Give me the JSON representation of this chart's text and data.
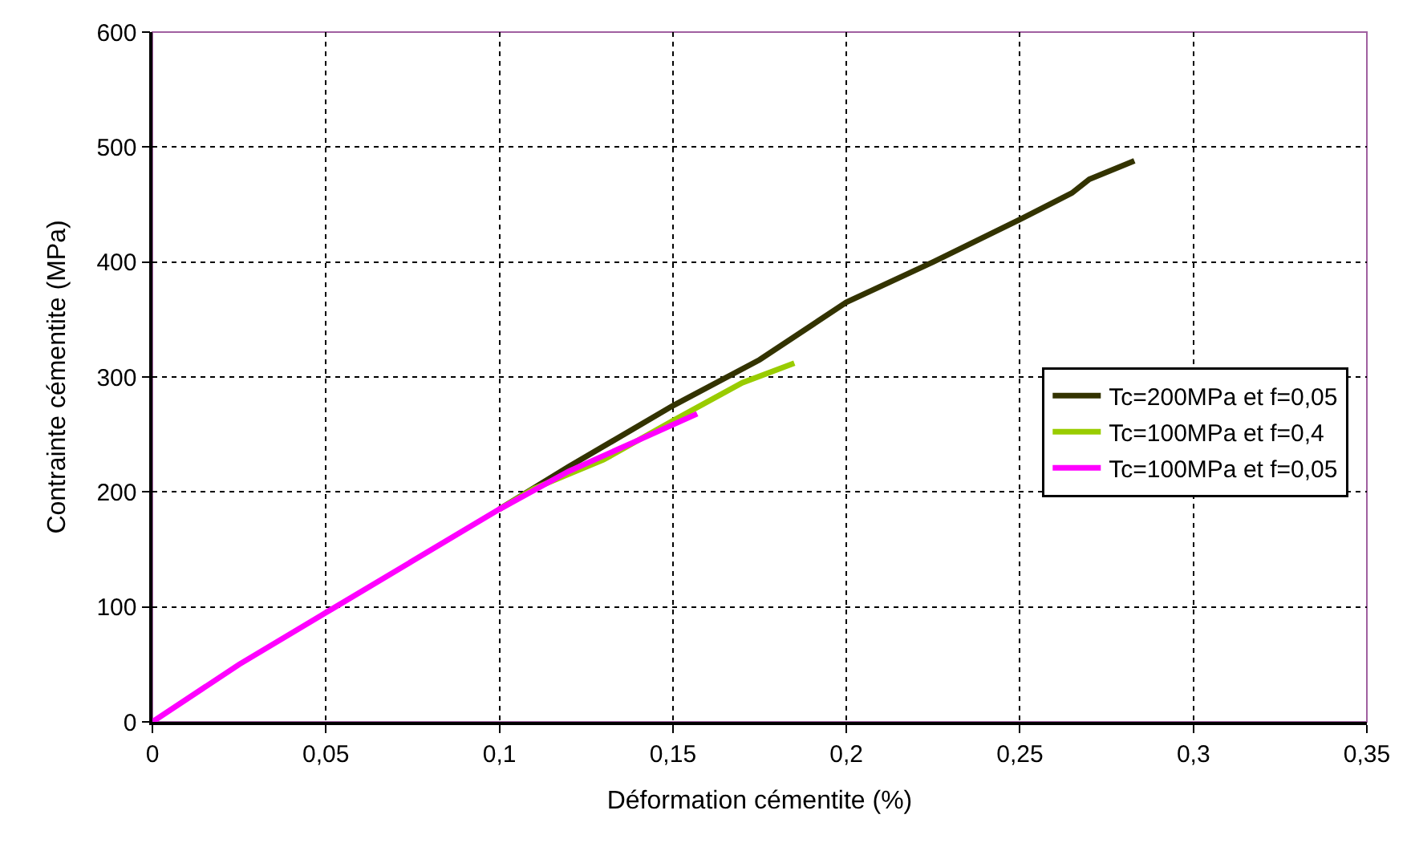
{
  "chart_data": {
    "type": "line",
    "xlabel": "Déformation cémentite (%)",
    "ylabel": "Contrainte cémentite (MPa)",
    "xlim": [
      0,
      0.35
    ],
    "xticks": [
      {
        "value": 0,
        "label": "0"
      },
      {
        "value": 0.05,
        "label": "0,05"
      },
      {
        "value": 0.1,
        "label": "0,1"
      },
      {
        "value": 0.15,
        "label": "0,15"
      },
      {
        "value": 0.2,
        "label": "0,2"
      },
      {
        "value": 0.25,
        "label": "0,25"
      },
      {
        "value": 0.3,
        "label": "0,3"
      },
      {
        "value": 0.35,
        "label": "0,35"
      }
    ],
    "ylim": [
      0,
      600
    ],
    "yticks": [
      0,
      100,
      200,
      300,
      400,
      500,
      600
    ],
    "grid": true,
    "legend": "right",
    "marker": "none",
    "line_style": "solid",
    "series": [
      {
        "name": "Tc=200MPa et f=0,05",
        "color": "#333300",
        "x": [
          0.1,
          0.12,
          0.15,
          0.175,
          0.2,
          0.225,
          0.25,
          0.265,
          0.27,
          0.283
        ],
        "values": [
          185,
          222,
          275,
          315,
          365,
          400,
          437,
          460,
          472,
          488
        ]
      },
      {
        "name": "Tc=100MPa et f=0,4",
        "color": "#99cc00",
        "x": [
          0.1,
          0.11,
          0.13,
          0.15,
          0.17,
          0.185
        ],
        "values": [
          185,
          203,
          228,
          262,
          295,
          312
        ]
      },
      {
        "name": "Tc=100MPa et f=0,05",
        "color": "#ff00ff",
        "x": [
          0,
          0.025,
          0.05,
          0.075,
          0.1,
          0.12,
          0.14,
          0.157
        ],
        "values": [
          0,
          50,
          95,
          140,
          185,
          218,
          245,
          268
        ]
      }
    ]
  }
}
